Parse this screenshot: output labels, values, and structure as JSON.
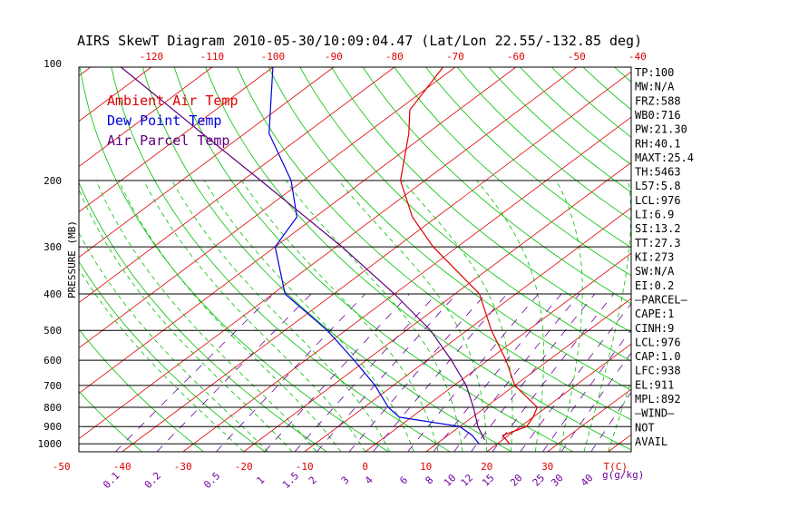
{
  "title": "AIRS SkewT Diagram 2010-05-30/10:09:04.47 (Lat/Lon 22.55/-132.85 deg)",
  "colors": {
    "ambient": "#e00000",
    "dewpoint": "#0000e0",
    "parcel": "#600080",
    "isotherm": "#e00000",
    "dry_adiabat": "#00c000",
    "moist_adiabat": "#00c000",
    "mixing_ratio": "#7000a0",
    "frame": "#000000"
  },
  "chart_data": {
    "type": "line",
    "title": "AIRS SkewT Diagram 2010-05-30/10:09:04.47 (Lat/Lon 22.55/-132.85 deg)",
    "ylabel": "PRESSURE (MB)",
    "y_scale": "log",
    "ylim": [
      1050,
      100
    ],
    "xlim": [
      -50,
      40
    ],
    "pressure_ticks": [
      "100",
      "200",
      "300",
      "400",
      "500",
      "600",
      "700",
      "800",
      "900",
      "1000"
    ],
    "top_temp_ticks": [
      "-120",
      "-110",
      "-100",
      "-90",
      "-80",
      "-70",
      "-60",
      "-50",
      "-40"
    ],
    "bottom_temp_ticks": [
      "-50",
      "-40",
      "-30",
      "-20",
      "-10",
      "0",
      "10",
      "20",
      "30"
    ],
    "bottom_temp_unit": "T(C)",
    "mixing_ratio_labels": [
      "0.1",
      "0.2",
      "0.5",
      "1",
      "1.5",
      "2",
      "3",
      "4",
      "6",
      "8",
      "10",
      "12",
      "15",
      "20",
      "25",
      "30",
      "40"
    ],
    "mixing_ratio_unit": "g(g/kg)",
    "legend": [
      "Ambient Air Temp",
      "Dew Point Temp",
      "Air Parcel Temp"
    ],
    "series": [
      {
        "name": "Ambient Air Temp",
        "points": [
          {
            "p": 1000,
            "t": 22.0
          },
          {
            "p": 950,
            "t": 19.0
          },
          {
            "p": 900,
            "t": 21.0
          },
          {
            "p": 850,
            "t": 20.0
          },
          {
            "p": 800,
            "t": 18.5
          },
          {
            "p": 700,
            "t": 10.0
          },
          {
            "p": 600,
            "t": 3.0
          },
          {
            "p": 500,
            "t": -6.0
          },
          {
            "p": 400,
            "t": -16.0
          },
          {
            "p": 300,
            "t": -34.0
          },
          {
            "p": 250,
            "t": -44.0
          },
          {
            "p": 200,
            "t": -54.0
          },
          {
            "p": 150,
            "t": -63.0
          },
          {
            "p": 130,
            "t": -68.0
          },
          {
            "p": 100,
            "t": -72.0
          }
        ]
      },
      {
        "name": "Dew Point Temp",
        "points": [
          {
            "p": 1000,
            "t": 17.0
          },
          {
            "p": 950,
            "t": 14.0
          },
          {
            "p": 900,
            "t": 10.0
          },
          {
            "p": 850,
            "t": -2.0
          },
          {
            "p": 800,
            "t": -6.0
          },
          {
            "p": 700,
            "t": -13.0
          },
          {
            "p": 600,
            "t": -22.0
          },
          {
            "p": 500,
            "t": -33.0
          },
          {
            "p": 400,
            "t": -48.0
          },
          {
            "p": 300,
            "t": -60.0
          },
          {
            "p": 250,
            "t": -63.0
          },
          {
            "p": 200,
            "t": -72.0
          },
          {
            "p": 150,
            "t": -86.0
          },
          {
            "p": 100,
            "t": -100.0
          }
        ]
      },
      {
        "name": "Air Parcel Temp",
        "points": [
          {
            "p": 976,
            "t": 17.0
          },
          {
            "p": 900,
            "t": 13.0
          },
          {
            "p": 800,
            "t": 8.0
          },
          {
            "p": 700,
            "t": 2.0
          },
          {
            "p": 600,
            "t": -6.0
          },
          {
            "p": 500,
            "t": -16.0
          },
          {
            "p": 400,
            "t": -30.0
          },
          {
            "p": 300,
            "t": -49.0
          },
          {
            "p": 200,
            "t": -77.0
          },
          {
            "p": 150,
            "t": -97.0
          },
          {
            "p": 100,
            "t": -125.0
          }
        ]
      }
    ]
  },
  "indices": [
    "TP:100",
    "MW:N/A",
    "FRZ:588",
    "WB0:716",
    "PW:21.30",
    "RH:40.1",
    "MAXT:25.4",
    "TH:5463",
    "L57:5.8",
    "LCL:976",
    "LI:6.9",
    "SI:13.2",
    "TT:27.3",
    "KI:273",
    "SW:N/A",
    "EI:0.2",
    "—PARCEL—",
    "CAPE:1",
    "CINH:9",
    "LCL:976",
    "CAP:1.0",
    "LFC:938",
    "EL:911",
    "MPL:892",
    "—WIND—",
    "NOT",
    "AVAIL"
  ]
}
